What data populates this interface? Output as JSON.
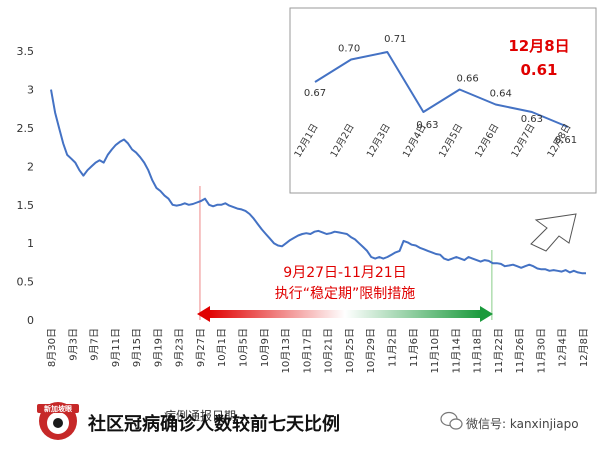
{
  "chart_data": [
    {
      "type": "line",
      "title": "社区冠病确诊人数较前七天比例",
      "xlabel": "病例通报日期",
      "ylabel": "",
      "ylim": [
        0,
        3.5
      ],
      "yticks": [
        "0",
        "0.5",
        "1",
        "1.5",
        "2",
        "2.5",
        "3",
        "3.5"
      ],
      "x_tick_labels": [
        "8月30日",
        "9月3日",
        "9月7日",
        "9月11日",
        "9月15日",
        "9月19日",
        "9月23日",
        "9月27日",
        "10月1日",
        "10月5日",
        "10月9日",
        "10月13日",
        "10月17日",
        "10月21日",
        "10月25日",
        "10月29日",
        "11月2日",
        "11月6日",
        "11月10日",
        "11月14日",
        "11月18日",
        "11月22日",
        "11月26日",
        "11月30日",
        "12月4日",
        "12月8日"
      ],
      "series": [
        {
          "values": [
            3.0,
            2.7,
            2.5,
            2.3,
            2.15,
            2.1,
            2.05,
            1.95,
            1.88,
            1.95,
            2.0,
            2.05,
            2.08,
            2.05,
            2.15,
            2.22,
            2.28,
            2.32,
            2.35,
            2.3,
            2.22,
            2.18,
            2.12,
            2.05,
            1.95,
            1.82,
            1.72,
            1.68,
            1.62,
            1.58,
            1.5,
            1.49,
            1.5,
            1.52,
            1.5,
            1.51,
            1.53,
            1.55,
            1.58,
            1.5,
            1.48,
            1.5,
            1.5,
            1.52,
            1.49,
            1.47,
            1.45,
            1.44,
            1.42,
            1.38,
            1.32,
            1.25,
            1.18,
            1.12,
            1.06,
            1.0,
            0.97,
            0.96,
            1.0,
            1.04,
            1.07,
            1.1,
            1.12,
            1.13,
            1.12,
            1.15,
            1.16,
            1.14,
            1.12,
            1.13,
            1.15,
            1.14,
            1.13,
            1.12,
            1.08,
            1.05,
            1.0,
            0.95,
            0.9,
            0.82,
            0.8,
            0.82,
            0.8,
            0.82,
            0.85,
            0.88,
            0.9,
            1.03,
            1.01,
            0.98,
            0.97,
            0.94,
            0.92,
            0.9,
            0.88,
            0.86,
            0.85,
            0.8,
            0.78,
            0.8,
            0.82,
            0.8,
            0.78,
            0.82,
            0.8,
            0.78,
            0.76,
            0.78,
            0.77,
            0.74,
            0.74,
            0.73,
            0.7,
            0.71,
            0.72,
            0.7,
            0.68,
            0.7,
            0.72,
            0.7,
            0.67,
            0.66,
            0.66,
            0.64,
            0.65,
            0.64,
            0.63,
            0.65,
            0.62,
            0.64,
            0.62,
            0.61,
            0.61
          ]
        }
      ],
      "annotations": {
        "period_label_1": "9月27日-11月21日",
        "period_label_2": "执行“稳定期”限制措施"
      }
    },
    {
      "type": "line",
      "categories": [
        "12月1日",
        "12月2日",
        "12月3日",
        "12月4日",
        "12月5日",
        "12月6日",
        "12月7日",
        "12月8日"
      ],
      "data_labels": [
        "0.67",
        "0.70",
        "0.71",
        "0.63",
        "0.66",
        "0.64",
        "0.63",
        "0.61"
      ],
      "series": [
        {
          "values": [
            0.67,
            0.7,
            0.71,
            0.63,
            0.66,
            0.64,
            0.63,
            0.61
          ]
        }
      ],
      "highlight_date": "12月8日",
      "highlight_value": "0.61"
    }
  ],
  "branding": {
    "logo_text": "新加坡眼",
    "wechat_label": "微信号: kanxinjiapo"
  },
  "colors": {
    "line": "#4472c4",
    "highlight": "#e00000",
    "arrow_start": "#e00000",
    "arrow_end": "#1a9a3c"
  }
}
